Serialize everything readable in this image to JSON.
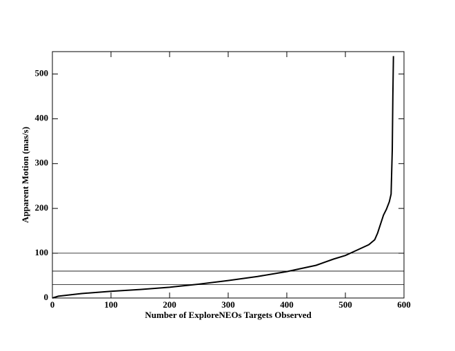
{
  "chart_data": {
    "type": "line",
    "xlabel": "Number of ExploreNEOs Targets Observed",
    "ylabel": "Apparent Motion (mas/s)",
    "x": [
      0,
      10,
      50,
      100,
      150,
      200,
      250,
      300,
      350,
      400,
      450,
      480,
      500,
      520,
      540,
      550,
      555,
      560,
      565,
      570,
      575,
      578,
      580,
      581,
      582
    ],
    "series": [
      {
        "color": "#000000",
        "values": [
          0,
          4,
          10,
          15,
          19,
          24,
          31,
          39,
          48,
          59,
          73,
          87,
          95,
          107,
          119,
          130,
          145,
          165,
          185,
          198,
          215,
          232,
          330,
          450,
          540
        ]
      }
    ],
    "hlines": [
      30,
      60,
      100
    ],
    "xlim": [
      0,
      600
    ],
    "ylim": [
      0,
      550
    ],
    "xticks": [
      0,
      100,
      200,
      300,
      400,
      500,
      600
    ],
    "yticks": [
      0,
      100,
      200,
      300,
      400,
      500
    ]
  }
}
